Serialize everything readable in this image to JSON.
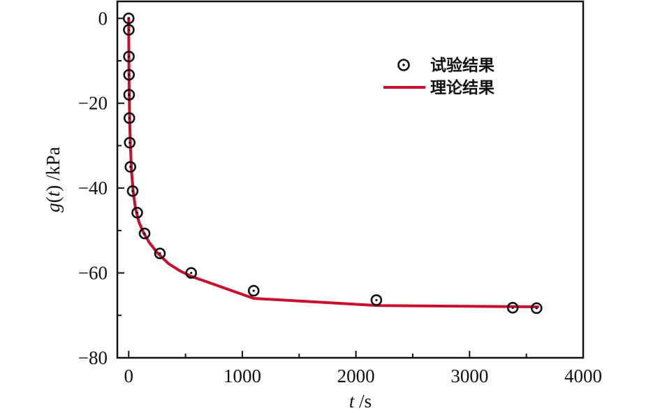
{
  "chart_data": {
    "type": "scatter",
    "xlabel": {
      "var": "t",
      "unit": " /s"
    },
    "ylabel": {
      "var_fn": "g",
      "var_arg": "t",
      "unit": " /kPa"
    },
    "xlim": [
      -100,
      4000
    ],
    "ylim": [
      -80,
      4
    ],
    "x_ticks": [
      0,
      1000,
      2000,
      3000,
      4000
    ],
    "x_tick_labels": [
      "0",
      "1000",
      "2000",
      "3000",
      "4000"
    ],
    "y_ticks": [
      0,
      -20,
      -40,
      -60,
      -80
    ],
    "y_tick_labels": [
      "0",
      "−20",
      "−40",
      "−60",
      "−80"
    ],
    "grid": false,
    "legend_position": "top-right",
    "series": [
      {
        "name": "试验结果",
        "kind": "markers",
        "marker": "circle-dot",
        "color": "#111111",
        "x": [
          0,
          1,
          2,
          3,
          4,
          6,
          9,
          15,
          35,
          75,
          140,
          275,
          550,
          1100,
          2180,
          3380,
          3590
        ],
        "y": [
          0,
          -2.7,
          -9,
          -13.3,
          -18,
          -23.5,
          -29.3,
          -35,
          -40.7,
          -45.8,
          -50.7,
          -55.4,
          -60,
          -64.2,
          -66.4,
          -68.2,
          -68.3
        ]
      },
      {
        "name": "理论结果",
        "kind": "line",
        "color": "#c8102e",
        "x": [
          0,
          1,
          2,
          4,
          8,
          15,
          25,
          40,
          60,
          90,
          130,
          180,
          250,
          350,
          450,
          550,
          1100,
          2200,
          3600
        ],
        "y": [
          0,
          -6,
          -11,
          -17,
          -23.5,
          -30,
          -36,
          -41,
          -44.8,
          -48,
          -50.5,
          -52.8,
          -55.2,
          -57.8,
          -59.5,
          -60.8,
          -66,
          -67.7,
          -68
        ]
      }
    ]
  }
}
